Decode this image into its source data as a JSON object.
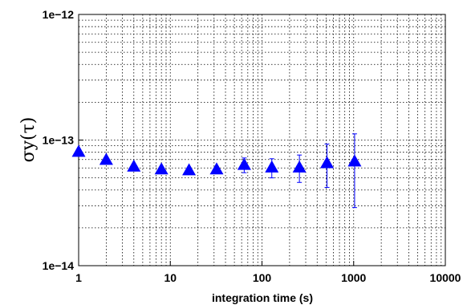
{
  "chart_data": {
    "type": "scatter",
    "title": "",
    "xlabel": "integration time (s)",
    "ylabel": "σy(τ)",
    "x_scale": "log",
    "y_scale": "log",
    "xlim": [
      1,
      10000
    ],
    "ylim": [
      1e-14,
      1e-12
    ],
    "x_ticks": [
      1,
      10,
      100,
      1000,
      10000
    ],
    "x_tick_labels": [
      "1",
      "10",
      "100",
      "1000",
      "10000"
    ],
    "y_ticks": [
      1e-14,
      1e-13,
      1e-12
    ],
    "y_tick_labels": [
      "1e−14",
      "1e−13",
      "1e−12"
    ],
    "grid": true,
    "marker": "triangle",
    "color": "#0000ff",
    "series": [
      {
        "x": [
          1,
          2,
          4,
          8,
          16,
          32,
          64,
          128,
          256,
          512,
          1024
        ],
        "y": [
          8e-14,
          6.9e-14,
          6.1e-14,
          5.8e-14,
          5.7e-14,
          5.8e-14,
          6.3e-14,
          6e-14,
          6e-14,
          6.5e-14,
          6.7e-14
        ],
        "err_low": [
          null,
          null,
          null,
          null,
          null,
          null,
          5.5e-14,
          5e-14,
          4.6e-14,
          4.2e-14,
          2.9e-14
        ],
        "err_high": [
          null,
          null,
          null,
          null,
          null,
          null,
          7.2e-14,
          7.1e-14,
          7.6e-14,
          9.3e-14,
          1.12e-13
        ]
      }
    ]
  }
}
